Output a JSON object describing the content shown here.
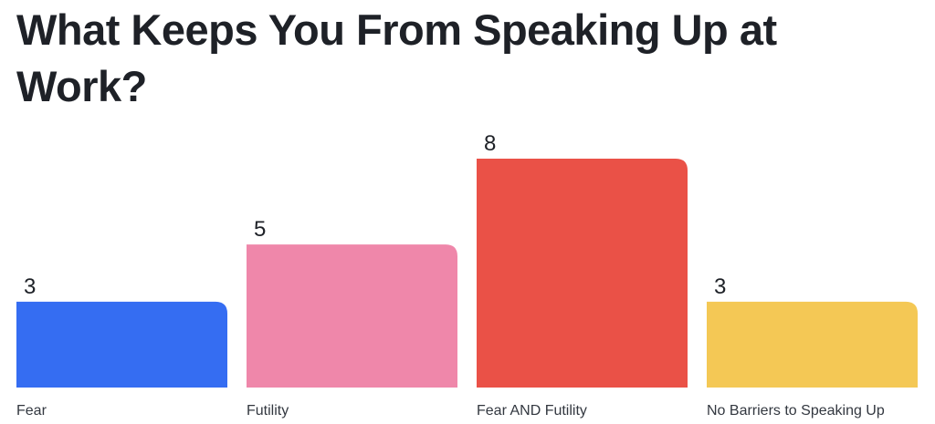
{
  "chart_data": {
    "type": "bar",
    "title": "What Keeps You From Speaking Up at Work?",
    "categories": [
      "Fear",
      "Futility",
      "Fear AND Futility",
      "No Barriers to Speaking Up"
    ],
    "values": [
      3,
      5,
      8,
      3
    ],
    "colors": [
      "#356df2",
      "#ef87aa",
      "#ea5147",
      "#f4c855"
    ],
    "xlabel": "",
    "ylabel": "",
    "ylim": [
      0,
      8
    ],
    "grid": false,
    "legend": "none"
  }
}
